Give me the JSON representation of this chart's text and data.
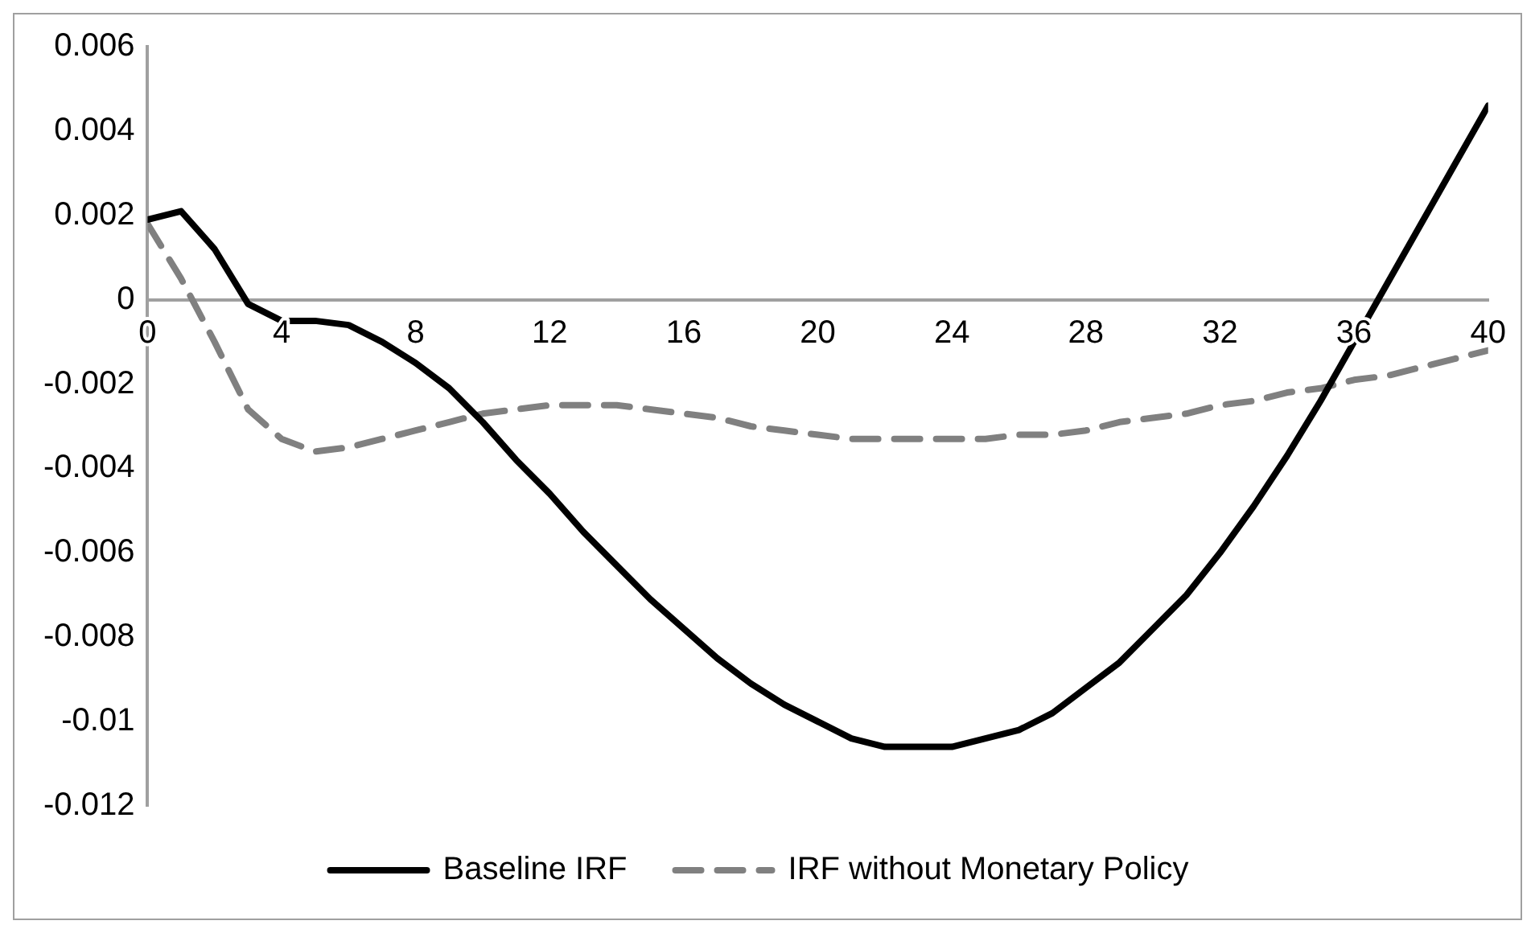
{
  "chart_data": {
    "type": "line",
    "x": [
      0,
      1,
      2,
      3,
      4,
      5,
      6,
      7,
      8,
      9,
      10,
      11,
      12,
      13,
      14,
      15,
      16,
      17,
      18,
      19,
      20,
      21,
      22,
      23,
      24,
      25,
      26,
      27,
      28,
      29,
      30,
      31,
      32,
      33,
      34,
      35,
      36,
      37,
      38,
      39,
      40
    ],
    "series": [
      {
        "name": "Baseline IRF",
        "color": "#000000",
        "line_style": "solid",
        "values": [
          0.0019,
          0.0021,
          0.0012,
          -0.0001,
          -0.0005,
          -0.0005,
          -0.0006,
          -0.001,
          -0.0015,
          -0.0021,
          -0.0029,
          -0.0038,
          -0.0046,
          -0.0055,
          -0.0063,
          -0.0071,
          -0.0078,
          -0.0085,
          -0.0091,
          -0.0096,
          -0.01,
          -0.0104,
          -0.0106,
          -0.0106,
          -0.0106,
          -0.0104,
          -0.0102,
          -0.0098,
          -0.0092,
          -0.0086,
          -0.0078,
          -0.007,
          -0.006,
          -0.0049,
          -0.0037,
          -0.0024,
          -0.001,
          0.0004,
          0.0018,
          0.0032,
          0.0046
        ]
      },
      {
        "name": "IRF without Monetary Policy",
        "color": "#808080",
        "line_style": "dashed",
        "values": [
          0.0018,
          0.0005,
          -0.001,
          -0.0026,
          -0.0033,
          -0.0036,
          -0.0035,
          -0.0033,
          -0.0031,
          -0.0029,
          -0.0027,
          -0.0026,
          -0.0025,
          -0.0025,
          -0.0025,
          -0.0026,
          -0.0027,
          -0.0028,
          -0.003,
          -0.0031,
          -0.0032,
          -0.0033,
          -0.0033,
          -0.0033,
          -0.0033,
          -0.0033,
          -0.0032,
          -0.0032,
          -0.0031,
          -0.0029,
          -0.0028,
          -0.0027,
          -0.0025,
          -0.0024,
          -0.0022,
          -0.0021,
          -0.0019,
          -0.0018,
          -0.0016,
          -0.0014,
          -0.0012
        ]
      }
    ],
    "xlim": [
      0,
      40
    ],
    "xticks": [
      0,
      4,
      8,
      12,
      16,
      20,
      24,
      28,
      32,
      36,
      40
    ],
    "ylim": [
      -0.012,
      0.006
    ],
    "yticks": [
      -0.012,
      -0.01,
      -0.008,
      -0.006,
      -0.004,
      -0.002,
      0,
      0.002,
      0.004,
      0.006
    ],
    "grid": false,
    "legend": "bottom",
    "marker": "none"
  }
}
